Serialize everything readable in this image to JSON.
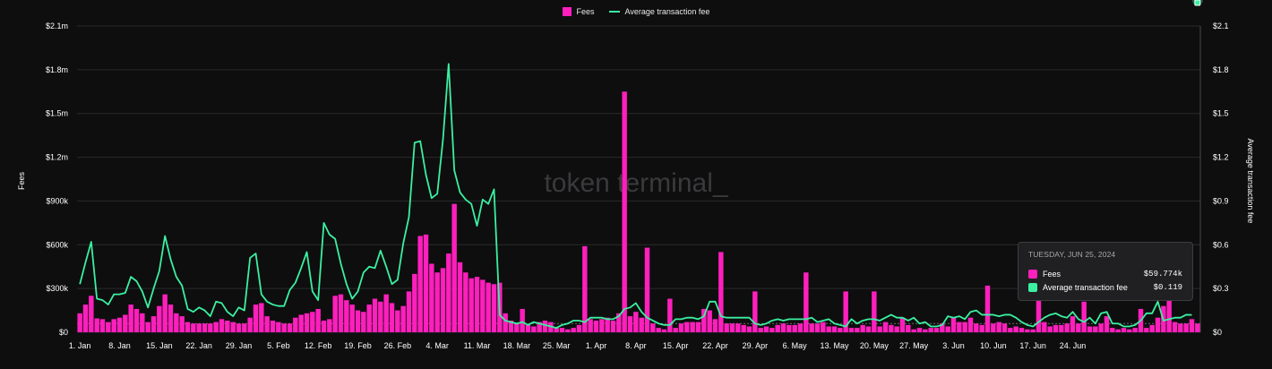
{
  "colors": {
    "fees": "#ff1fbd",
    "avg_fee": "#3bf0a0",
    "background": "#0e0e0f",
    "grid": "#2a2a2c",
    "text": "#ffffff"
  },
  "watermark": "token terminal_",
  "tooltip": {
    "date": "TUESDAY, JUN 25, 2024",
    "rows": [
      {
        "label": "Fees",
        "value": "$59.774k"
      },
      {
        "label": "Average transaction fee",
        "value": "$0.119"
      }
    ]
  },
  "chart_data": {
    "type": "bar",
    "legend": [
      "Fees",
      "Average transaction fee"
    ],
    "legend_position": "top-center",
    "grid": true,
    "x_ticks": [
      "1. Jan",
      "8. Jan",
      "15. Jan",
      "22. Jan",
      "29. Jan",
      "5. Feb",
      "12. Feb",
      "19. Feb",
      "26. Feb",
      "4. Mar",
      "11. Mar",
      "18. Mar",
      "25. Mar",
      "1. Apr",
      "8. Apr",
      "15. Apr",
      "22. Apr",
      "29. Apr",
      "6. May",
      "13. May",
      "20. May",
      "27. May",
      "3. Jun",
      "10. Jun",
      "17. Jun",
      "24. Jun"
    ],
    "y_left": {
      "label": "Fees",
      "ticks": [
        "$0",
        "$300k",
        "$600k",
        "$900k",
        "$1.2m",
        "$1.5m",
        "$1.8m",
        "$2.1m"
      ],
      "ylim": [
        0,
        2100000
      ]
    },
    "y_right": {
      "label": "Average transaction fee",
      "ticks": [
        "$0",
        "$0.3",
        "$0.6",
        "$0.9",
        "$1.2",
        "$1.5",
        "$1.8",
        "$2.1"
      ],
      "ylim": [
        0,
        2.1
      ]
    },
    "series": [
      {
        "name": "Fees",
        "type": "bar",
        "values": [
          130000,
          190000,
          250000,
          95000,
          90000,
          70000,
          90000,
          100000,
          120000,
          190000,
          160000,
          130000,
          70000,
          110000,
          180000,
          260000,
          190000,
          130000,
          110000,
          70000,
          60000,
          60000,
          60000,
          60000,
          70000,
          90000,
          80000,
          70000,
          60000,
          60000,
          100000,
          190000,
          200000,
          110000,
          80000,
          70000,
          60000,
          60000,
          100000,
          120000,
          130000,
          140000,
          160000,
          80000,
          90000,
          250000,
          260000,
          220000,
          190000,
          150000,
          140000,
          190000,
          230000,
          210000,
          260000,
          200000,
          150000,
          180000,
          280000,
          400000,
          660000,
          670000,
          470000,
          410000,
          440000,
          540000,
          880000,
          480000,
          410000,
          370000,
          380000,
          360000,
          340000,
          330000,
          340000,
          130000,
          80000,
          60000,
          160000,
          50000,
          40000,
          70000,
          80000,
          70000,
          30000,
          30000,
          20000,
          30000,
          50000,
          590000,
          90000,
          80000,
          90000,
          100000,
          80000,
          130000,
          1650000,
          110000,
          140000,
          100000,
          580000,
          60000,
          30000,
          20000,
          230000,
          30000,
          60000,
          70000,
          70000,
          70000,
          160000,
          150000,
          90000,
          550000,
          60000,
          60000,
          60000,
          50000,
          40000,
          280000,
          30000,
          40000,
          30000,
          50000,
          60000,
          50000,
          50000,
          60000,
          410000,
          60000,
          60000,
          70000,
          40000,
          40000,
          30000,
          280000,
          30000,
          30000,
          50000,
          40000,
          280000,
          40000,
          70000,
          50000,
          40000,
          100000,
          50000,
          20000,
          30000,
          20000,
          30000,
          30000,
          60000,
          40000,
          100000,
          70000,
          70000,
          100000,
          60000,
          50000,
          320000,
          60000,
          70000,
          60000,
          30000,
          40000,
          30000,
          20000,
          20000,
          240000,
          70000,
          40000,
          50000,
          50000,
          60000,
          110000,
          60000,
          210000,
          40000,
          40000,
          60000,
          110000,
          30000,
          20000,
          30000,
          20000,
          30000,
          160000,
          30000,
          50000,
          100000,
          180000,
          290000,
          70000,
          60000,
          60000,
          90000,
          59774
        ]
      },
      {
        "name": "Average transaction fee",
        "type": "line",
        "values": [
          0.33,
          0.48,
          0.62,
          0.23,
          0.22,
          0.19,
          0.26,
          0.26,
          0.27,
          0.38,
          0.35,
          0.28,
          0.17,
          0.3,
          0.42,
          0.66,
          0.5,
          0.38,
          0.32,
          0.16,
          0.14,
          0.17,
          0.15,
          0.11,
          0.21,
          0.2,
          0.14,
          0.11,
          0.17,
          0.15,
          0.51,
          0.54,
          0.26,
          0.21,
          0.19,
          0.18,
          0.18,
          0.29,
          0.34,
          0.44,
          0.55,
          0.28,
          0.22,
          0.75,
          0.67,
          0.64,
          0.47,
          0.33,
          0.23,
          0.28,
          0.41,
          0.45,
          0.44,
          0.56,
          0.45,
          0.33,
          0.36,
          0.61,
          0.79,
          1.3,
          1.31,
          1.08,
          0.92,
          0.95,
          1.32,
          1.84,
          1.11,
          0.96,
          0.91,
          0.88,
          0.73,
          0.91,
          0.88,
          0.98,
          0.12,
          0.08,
          0.07,
          0.06,
          0.07,
          0.05,
          0.07,
          0.06,
          0.05,
          0.04,
          0.03,
          0.05,
          0.06,
          0.08,
          0.08,
          0.07,
          0.1,
          0.1,
          0.1,
          0.09,
          0.09,
          0.11,
          0.16,
          0.17,
          0.2,
          0.14,
          0.1,
          0.08,
          0.06,
          0.05,
          0.05,
          0.09,
          0.09,
          0.1,
          0.1,
          0.09,
          0.11,
          0.21,
          0.21,
          0.11,
          0.1,
          0.1,
          0.1,
          0.1,
          0.1,
          0.06,
          0.05,
          0.06,
          0.08,
          0.09,
          0.08,
          0.09,
          0.09,
          0.09,
          0.09,
          0.1,
          0.07,
          0.08,
          0.09,
          0.06,
          0.05,
          0.04,
          0.09,
          0.06,
          0.08,
          0.09,
          0.09,
          0.08,
          0.1,
          0.12,
          0.1,
          0.1,
          0.08,
          0.1,
          0.06,
          0.07,
          0.04,
          0.04,
          0.05,
          0.11,
          0.1,
          0.11,
          0.09,
          0.14,
          0.15,
          0.12,
          0.12,
          0.12,
          0.11,
          0.12,
          0.12,
          0.1,
          0.07,
          0.05,
          0.04,
          0.07,
          0.1,
          0.12,
          0.13,
          0.11,
          0.1,
          0.14,
          0.09,
          0.07,
          0.1,
          0.06,
          0.13,
          0.14,
          0.06,
          0.06,
          0.04,
          0.04,
          0.05,
          0.08,
          0.13,
          0.13,
          0.21,
          0.08,
          0.09,
          0.1,
          0.1,
          0.12,
          0.119
        ]
      }
    ]
  }
}
